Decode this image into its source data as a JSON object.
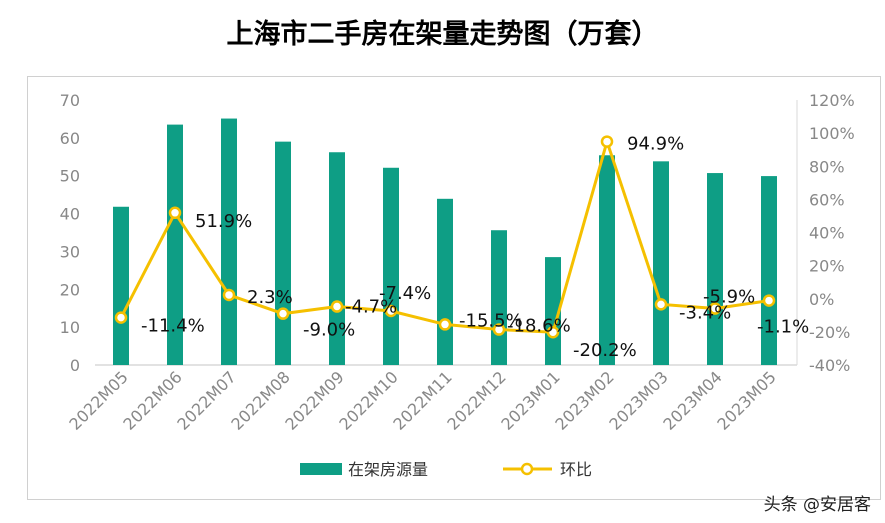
{
  "chart_data": {
    "type": "bar+line",
    "title": "上海市二手房在架量走势图（万套）",
    "categories": [
      "2022M05",
      "2022M06",
      "2022M07",
      "2022M08",
      "2022M09",
      "2022M10",
      "2022M11",
      "2022M12",
      "2023M01",
      "2023M02",
      "2023M03",
      "2023M04",
      "2023M05"
    ],
    "series": [
      {
        "name": "在架房源量",
        "type": "bar",
        "axis": "left",
        "color": "#0e9e85",
        "values": [
          41.8,
          63.5,
          65.1,
          59.0,
          56.2,
          52.1,
          43.9,
          35.6,
          28.5,
          55.4,
          53.8,
          50.7,
          49.9
        ]
      },
      {
        "name": "环比",
        "type": "line",
        "axis": "right",
        "color": "#f5c000",
        "values": [
          -11.4,
          51.9,
          2.3,
          -9.0,
          -4.7,
          -7.4,
          -15.5,
          -18.6,
          -20.2,
          94.9,
          -3.4,
          -5.9,
          -1.1
        ],
        "labels": [
          "-11.4%",
          "51.9%",
          "2.3%",
          "-9.0%",
          "-4.7%",
          "-7.4%",
          "-15.5%",
          "-18.6%",
          "-20.2%",
          "94.9%",
          "-3.4%",
          "-5.9%",
          "-1.1%"
        ]
      }
    ],
    "y_left": {
      "range": [
        0,
        70
      ],
      "ticks": [
        "0",
        "10",
        "20",
        "30",
        "40",
        "50",
        "60",
        "70"
      ]
    },
    "y_right": {
      "range": [
        -40,
        120
      ],
      "ticks": [
        "-40%",
        "-20%",
        "0%",
        "20%",
        "40%",
        "60%",
        "80%",
        "100%",
        "120%"
      ]
    },
    "grid": false,
    "legend": "bottom"
  },
  "watermark": "头条 @安居客"
}
